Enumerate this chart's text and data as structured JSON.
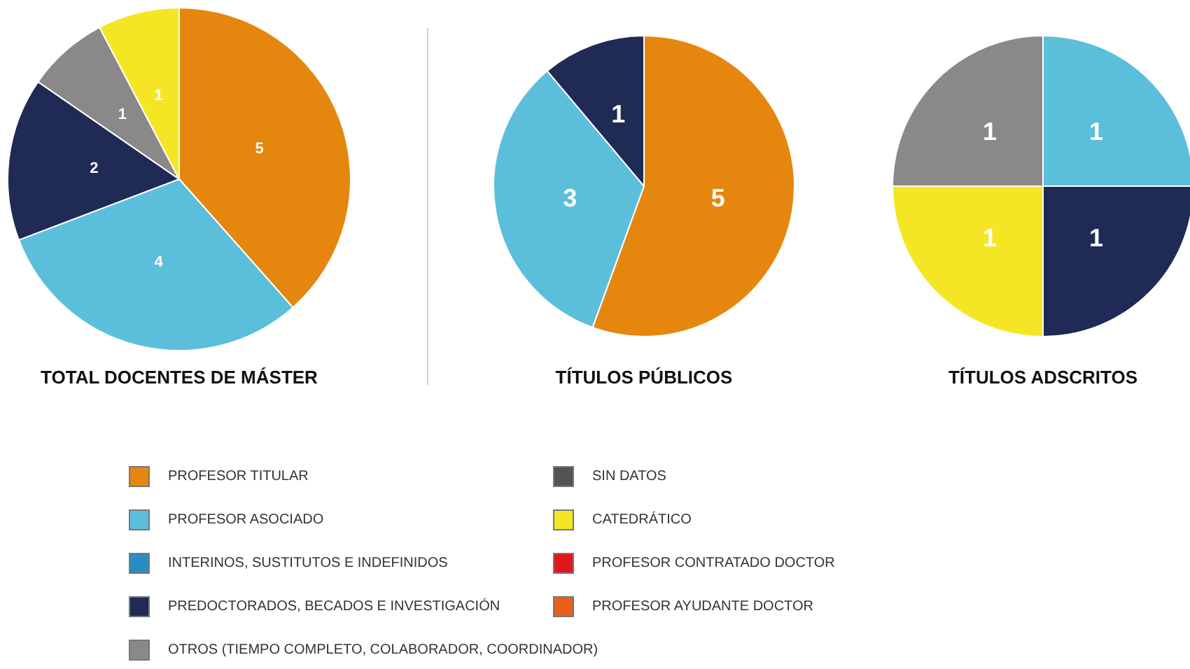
{
  "chart_data": [
    {
      "type": "pie",
      "title": "TOTAL DOCENTES DE MÁSTER",
      "categories": [
        "PROFESOR TITULAR",
        "PROFESOR ASOCIADO",
        "INTERINOS, SUSTITUTOS E INDEFINIDOS",
        "PREDOCTORADOS, BECADOS E INVESTIGACIÓN",
        "OTROS (TIEMPO COMPLETO, COLABORADOR, COORDINADOR)",
        "SIN DATOS",
        "CATEDRÁTICO",
        "PROFESOR CONTRATADO DOCTOR",
        "PROFESOR AYUDANTE DOCTOR"
      ],
      "values": [
        5,
        4,
        0,
        2,
        1,
        0,
        1,
        0,
        0
      ],
      "colors": [
        "#e5870f",
        "#5bbfdc",
        "#2a8cc4",
        "#1f2a55",
        "#8a8888",
        "#555253",
        "#f5e625",
        "#e3161c",
        "#e8601c"
      ],
      "data_labels": true,
      "legend": "bottom"
    },
    {
      "type": "pie",
      "title": "TÍTULOS PÚBLICOS",
      "categories": [
        null,
        null,
        null
      ],
      "values": [
        5,
        3,
        1
      ],
      "colors": [
        "#e5870f",
        "#5bbfdc",
        "#1f2a55"
      ],
      "data_labels": true
    },
    {
      "type": "pie",
      "title": "TÍTULOS ADSCRITOS",
      "categories": [
        null,
        null,
        null,
        null
      ],
      "values": [
        1,
        1,
        1,
        1
      ],
      "colors": [
        "#5bbfdc",
        "#1f2a55",
        "#f5e625",
        "#8a8888"
      ],
      "data_labels": true
    }
  ]
}
